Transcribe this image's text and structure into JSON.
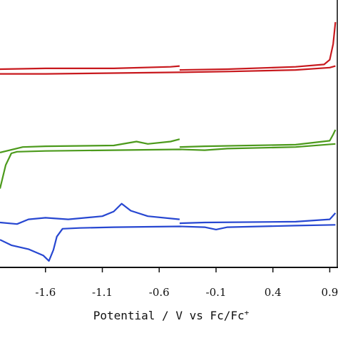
{
  "chart_data": {
    "type": "line",
    "title": "",
    "xlabel": "Potential / V vs Fc/Fc",
    "xlabel_superscript": "+",
    "ylabel": "",
    "x_tick_labels": [
      "-1.6",
      "-1.1",
      "-0.6",
      "-0.1",
      "0.4",
      "0.9"
    ],
    "xlim": [
      -2.0,
      0.96
    ],
    "grid": false,
    "legend": "none",
    "series": [
      {
        "color": "#c8191e",
        "upper": [
          [
            -2.0,
            0.0
          ],
          [
            -1.6,
            0.1
          ],
          [
            -1.0,
            0.1
          ],
          [
            -0.5,
            0.3
          ],
          [
            -0.42,
            0.4
          ],
          [
            -0.42,
            -0.1
          ],
          [
            0.0,
            0.0
          ],
          [
            0.6,
            0.3
          ],
          [
            0.85,
            0.6
          ],
          [
            0.9,
            1.2
          ],
          [
            0.93,
            3.2
          ],
          [
            0.95,
            6.0
          ]
        ],
        "lower": [
          [
            -2.0,
            -0.6
          ],
          [
            -1.6,
            -0.6
          ],
          [
            -1.0,
            -0.5
          ],
          [
            -0.42,
            -0.4
          ],
          [
            0.0,
            -0.3
          ],
          [
            0.6,
            -0.1
          ],
          [
            0.9,
            0.2
          ],
          [
            0.95,
            0.4
          ]
        ]
      },
      {
        "color": "#4c9a1c",
        "upper": [
          [
            -2.0,
            -0.9
          ],
          [
            -1.8,
            -0.2
          ],
          [
            -1.6,
            -0.1
          ],
          [
            -1.0,
            0.0
          ],
          [
            -0.8,
            0.5
          ],
          [
            -0.7,
            0.2
          ],
          [
            -0.5,
            0.5
          ],
          [
            -0.42,
            0.8
          ],
          [
            -0.42,
            -0.2
          ],
          [
            -0.2,
            -0.1
          ],
          [
            0.6,
            0.1
          ],
          [
            0.9,
            0.6
          ],
          [
            0.93,
            1.4
          ],
          [
            0.95,
            2.0
          ]
        ],
        "lower": [
          [
            -2.0,
            -5.5
          ],
          [
            -1.95,
            -2.5
          ],
          [
            -1.9,
            -1.0
          ],
          [
            -1.85,
            -0.8
          ],
          [
            -1.6,
            -0.7
          ],
          [
            -1.0,
            -0.6
          ],
          [
            -0.42,
            -0.5
          ],
          [
            -0.2,
            -0.6
          ],
          [
            0.0,
            -0.4
          ],
          [
            0.6,
            -0.2
          ],
          [
            0.95,
            0.2
          ]
        ]
      },
      {
        "color": "#2747d1",
        "upper": [
          [
            -2.0,
            0.0
          ],
          [
            -1.85,
            -0.2
          ],
          [
            -1.75,
            0.4
          ],
          [
            -1.6,
            0.6
          ],
          [
            -1.4,
            0.4
          ],
          [
            -1.1,
            0.8
          ],
          [
            -1.0,
            1.4
          ],
          [
            -0.93,
            2.4
          ],
          [
            -0.85,
            1.5
          ],
          [
            -0.7,
            0.8
          ],
          [
            -0.42,
            0.4
          ],
          [
            -0.42,
            -0.1
          ],
          [
            -0.2,
            0.0
          ],
          [
            0.6,
            0.1
          ],
          [
            0.9,
            0.4
          ],
          [
            0.95,
            1.2
          ]
        ],
        "lower": [
          [
            -2.0,
            -2.2
          ],
          [
            -1.9,
            -2.9
          ],
          [
            -1.75,
            -3.4
          ],
          [
            -1.62,
            -4.2
          ],
          [
            -1.57,
            -4.9
          ],
          [
            -1.53,
            -3.5
          ],
          [
            -1.5,
            -1.8
          ],
          [
            -1.45,
            -0.8
          ],
          [
            -1.3,
            -0.7
          ],
          [
            -1.0,
            -0.6
          ],
          [
            -0.42,
            -0.5
          ],
          [
            -0.2,
            -0.6
          ],
          [
            -0.1,
            -0.9
          ],
          [
            0.0,
            -0.6
          ],
          [
            0.6,
            -0.4
          ],
          [
            0.95,
            -0.3
          ]
        ]
      }
    ]
  }
}
